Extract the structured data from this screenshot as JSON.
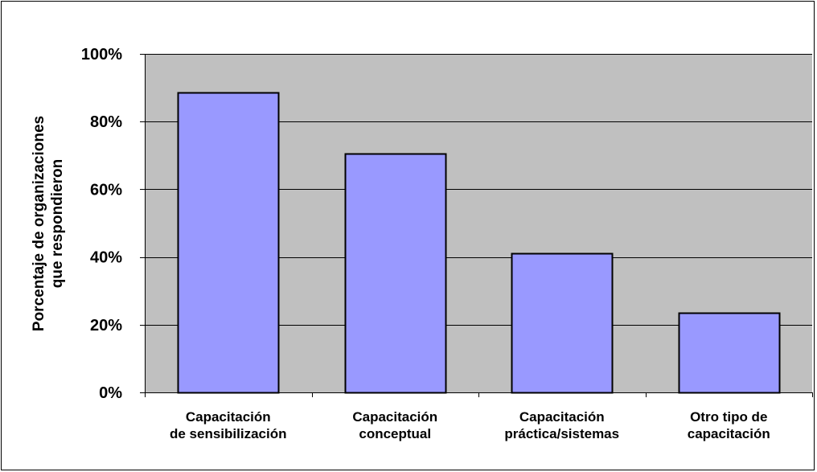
{
  "chart_data": {
    "type": "bar",
    "title": "",
    "xlabel": "",
    "ylabel_lines": [
      "Porcentaje de organizaciones",
      "que respondieron"
    ],
    "categories": [
      [
        "Capacitación",
        "de sensibilización"
      ],
      [
        "Capacitación",
        "conceptual"
      ],
      [
        "Capacitación",
        "práctica/sistemas"
      ],
      [
        "Otro tipo de",
        "capacitación"
      ]
    ],
    "values": [
      0.885,
      0.705,
      0.41,
      0.235
    ],
    "ylim": [
      0,
      1
    ],
    "yticks": [
      0,
      0.2,
      0.4,
      0.6,
      0.8,
      1.0
    ],
    "ytick_labels": [
      "0%",
      "20%",
      "40%",
      "60%",
      "80%",
      "100%"
    ],
    "grid": true,
    "legend": "none",
    "colors": {
      "bar_fill": "#9999ff",
      "plot_background": "#c0c0c0",
      "gridline": "#000000",
      "border": "#000000"
    }
  }
}
